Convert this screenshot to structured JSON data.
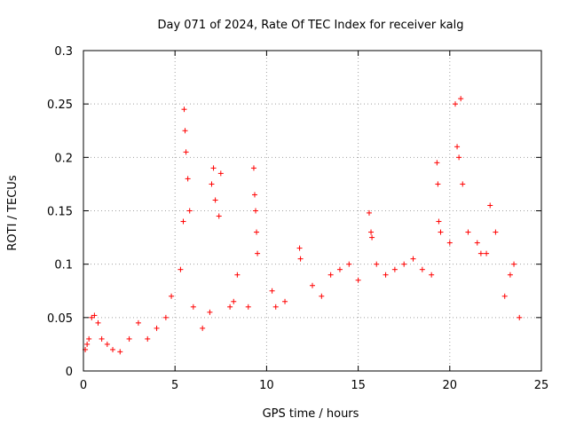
{
  "chart_data": {
    "type": "scatter",
    "title": "Day 071 of 2024, Rate Of TEC Index for receiver kalg",
    "xlabel": "GPS time / hours",
    "ylabel": "ROTI / TECUs",
    "xlim": [
      0,
      25
    ],
    "ylim": [
      0,
      0.3
    ],
    "xticks": [
      "0",
      "5",
      "10",
      "15",
      "20",
      "25"
    ],
    "yticks": [
      "0",
      "0.05",
      "0.1",
      "0.15",
      "0.2",
      "0.25",
      "0.3"
    ],
    "grid": true,
    "marker": "+",
    "color": "#ff0000",
    "series": [
      {
        "name": "ROTI",
        "x": [
          0.1,
          0.2,
          0.3,
          0.45,
          0.6,
          0.8,
          1.0,
          1.3,
          1.6,
          2.0,
          2.5,
          3.0,
          3.5,
          4.0,
          4.5,
          4.8,
          5.3,
          5.45,
          5.5,
          5.55,
          5.6,
          5.7,
          5.8,
          6.0,
          6.5,
          6.9,
          7.0,
          7.1,
          7.2,
          7.4,
          7.5,
          8.0,
          8.2,
          8.4,
          9.0,
          9.3,
          9.35,
          9.4,
          9.45,
          9.5,
          10.3,
          10.5,
          11.0,
          11.8,
          11.85,
          12.5,
          13.0,
          13.5,
          14.0,
          14.5,
          15.0,
          15.6,
          15.7,
          15.75,
          16.0,
          16.5,
          17.0,
          17.5,
          18.0,
          18.5,
          19.0,
          19.3,
          19.35,
          19.4,
          19.5,
          20.0,
          20.3,
          20.4,
          20.5,
          20.6,
          20.7,
          21.0,
          21.5,
          21.7,
          22.0,
          22.2,
          22.5,
          23.0,
          23.3,
          23.5,
          23.8
        ],
        "y": [
          0.02,
          0.025,
          0.03,
          0.05,
          0.052,
          0.045,
          0.03,
          0.025,
          0.02,
          0.018,
          0.03,
          0.045,
          0.03,
          0.04,
          0.05,
          0.07,
          0.095,
          0.14,
          0.245,
          0.225,
          0.205,
          0.18,
          0.15,
          0.06,
          0.04,
          0.055,
          0.175,
          0.19,
          0.16,
          0.145,
          0.185,
          0.06,
          0.065,
          0.09,
          0.06,
          0.19,
          0.165,
          0.15,
          0.13,
          0.11,
          0.075,
          0.06,
          0.065,
          0.115,
          0.105,
          0.08,
          0.07,
          0.09,
          0.095,
          0.1,
          0.085,
          0.148,
          0.13,
          0.125,
          0.1,
          0.09,
          0.095,
          0.1,
          0.105,
          0.095,
          0.09,
          0.195,
          0.175,
          0.14,
          0.13,
          0.12,
          0.25,
          0.21,
          0.2,
          0.255,
          0.175,
          0.13,
          0.12,
          0.11,
          0.11,
          0.155,
          0.13,
          0.07,
          0.09,
          0.1,
          0.05
        ]
      }
    ]
  }
}
